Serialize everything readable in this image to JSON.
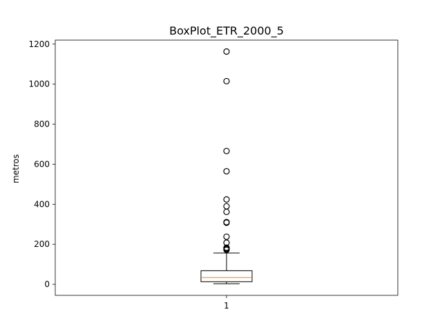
{
  "chart_data": {
    "type": "boxplot",
    "title": "BoxPlot_ETR_2000_5",
    "xlabel": "",
    "ylabel": "metros",
    "categories": [
      "1"
    ],
    "yticks": [
      0,
      200,
      400,
      600,
      800,
      1000,
      1200
    ],
    "ylim": [
      -55,
      1220
    ],
    "grid": false,
    "legend": "none",
    "boxes": [
      {
        "category": "1",
        "whisker_low": 3,
        "q1": 13,
        "median": 34,
        "q3": 68,
        "whisker_high": 156,
        "outliers": [
          172,
          176,
          178,
          181,
          183,
          208,
          238,
          308,
          311,
          362,
          390,
          424,
          565,
          666,
          1015,
          1163
        ]
      }
    ],
    "colors": {
      "box": "#000000",
      "median": "#ff7f0e",
      "whisker": "#000000",
      "flier": "#000000"
    }
  }
}
